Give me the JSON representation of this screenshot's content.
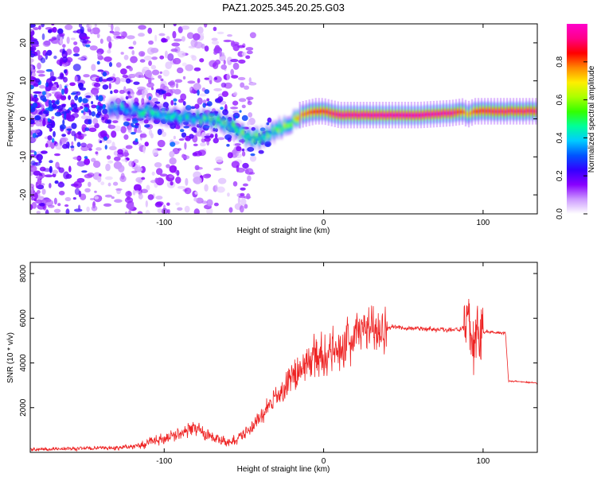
{
  "title": "PAZ1.2025.345.20.25.G03",
  "colors": {
    "line": "#ee2222",
    "frame": "#000000"
  },
  "chart_data": [
    {
      "type": "heatmap",
      "name": "spectrogram",
      "xlabel": "Height of straight line (km)",
      "ylabel": "Frequency (Hz)",
      "xlim": [
        -184,
        134
      ],
      "ylim": [
        -25,
        25
      ],
      "xticks": [
        -100,
        0,
        100
      ],
      "xtick_labels": [
        "-100",
        "0",
        "100"
      ],
      "yticks": [
        -20,
        -10,
        0,
        10,
        20
      ],
      "ytick_labels": [
        "-20",
        "-10",
        "0",
        "10",
        "20"
      ],
      "ridge": {
        "x": [
          -140,
          -125,
          -115,
          -105,
          -95,
          -85,
          -75,
          -65,
          -60,
          -55,
          -50,
          -45,
          -40,
          -35,
          -30,
          -25,
          -20,
          -15,
          -10,
          -5,
          0,
          5,
          10,
          20,
          40,
          60,
          80,
          88,
          90,
          92,
          95,
          110,
          134
        ],
        "freq": [
          3,
          2.5,
          2,
          1.5,
          0.5,
          0.5,
          0,
          -1,
          -1.5,
          -3,
          -4.5,
          -5.5,
          -5,
          -4,
          -3,
          -2,
          -1.5,
          1,
          1.5,
          2,
          2,
          1.5,
          1,
          1,
          1,
          1,
          1.5,
          2,
          1,
          1.5,
          2,
          2,
          2
        ],
        "amplitude": [
          0.35,
          0.4,
          0.45,
          0.5,
          0.45,
          0.45,
          0.5,
          0.5,
          0.55,
          0.55,
          0.55,
          0.55,
          0.55,
          0.6,
          0.55,
          0.6,
          0.6,
          0.75,
          0.8,
          0.85,
          0.85,
          0.9,
          0.95,
          0.95,
          0.97,
          0.97,
          0.95,
          0.8,
          0.7,
          0.75,
          0.85,
          0.9,
          0.9
        ]
      },
      "colorbar": {
        "label": "Normalized spectral amplitude",
        "range": [
          0,
          1
        ],
        "ticks": [
          0.0,
          0.2,
          0.4,
          0.6,
          0.8
        ],
        "tick_labels": [
          "0.0",
          "0.2",
          "0.4",
          "0.6",
          "0.8"
        ],
        "stops": [
          "#ffffff",
          "#cc99ff",
          "#8800ff",
          "#3300ff",
          "#0055ff",
          "#00ccff",
          "#00ff99",
          "#33ff00",
          "#aaff00",
          "#ffee00",
          "#ff8800",
          "#ff0000",
          "#ff0088",
          "#ff00cc"
        ]
      }
    },
    {
      "type": "line",
      "name": "snr",
      "xlabel": "Height of straight line (km)",
      "ylabel": "SNR (10 * v/v)",
      "xlim": [
        -184,
        134
      ],
      "ylim": [
        0,
        8500
      ],
      "xticks": [
        -100,
        0,
        100
      ],
      "xtick_labels": [
        "-100",
        "0",
        "100"
      ],
      "yticks": [
        2000,
        4000,
        6000,
        8000
      ],
      "ytick_labels": [
        "2000",
        "4000",
        "6000",
        "8000"
      ],
      "x": [
        -184,
        -170,
        -150,
        -130,
        -115,
        -105,
        -95,
        -85,
        -80,
        -75,
        -70,
        -65,
        -60,
        -55,
        -50,
        -45,
        -40,
        -35,
        -30,
        -25,
        -20,
        -15,
        -10,
        -5,
        0,
        5,
        10,
        15,
        20,
        25,
        30,
        35,
        40,
        45,
        50,
        60,
        70,
        80,
        88,
        91,
        94,
        96,
        98,
        100,
        110,
        114,
        116,
        125,
        134
      ],
      "y": [
        130,
        150,
        180,
        200,
        300,
        520,
        750,
        1000,
        1100,
        850,
        700,
        520,
        430,
        560,
        850,
        1150,
        1500,
        2000,
        2400,
        2800,
        3300,
        3700,
        4000,
        4300,
        4350,
        4450,
        4600,
        4950,
        5250,
        5450,
        5550,
        5550,
        5600,
        5600,
        5550,
        5550,
        5500,
        5500,
        5500,
        6000,
        4500,
        5500,
        5400,
        5400,
        5350,
        5350,
        3200,
        3150,
        3100
      ]
    }
  ]
}
